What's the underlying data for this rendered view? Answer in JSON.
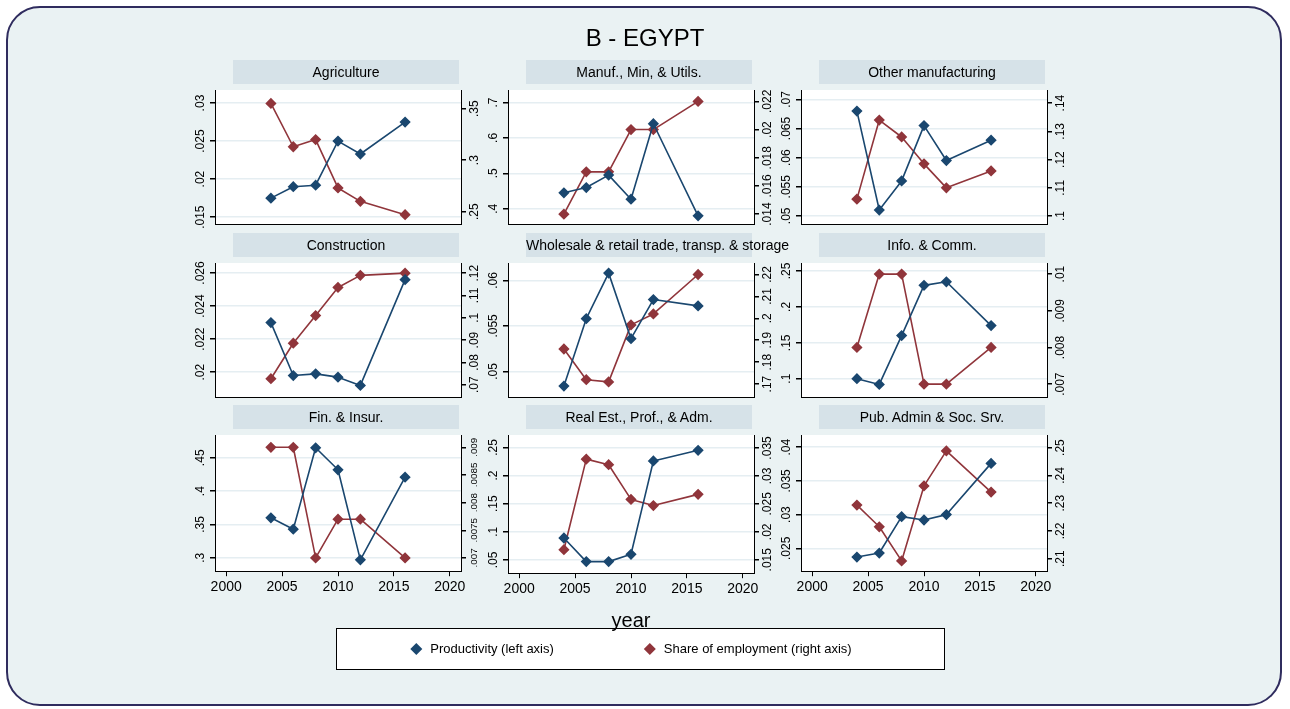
{
  "chart_data": [
    {
      "type": "line",
      "title": "Agriculture",
      "x": [
        2004,
        2006,
        2008,
        2010,
        2012,
        2016
      ],
      "xlim": [
        1999,
        2021
      ],
      "marker": "diamond",
      "grid": "y",
      "tick_labels": "y",
      "series": [
        {
          "color": "#1a476f",
          "values": [
            0.0175,
            0.019,
            0.0192,
            0.025,
            0.0233,
            0.0275
          ]
        },
        {
          "color": "#90353b",
          "axis": "y2",
          "values": [
            0.355,
            0.313,
            0.32,
            0.273,
            0.26,
            0.247
          ]
        }
      ],
      "ylim": [
        0.0141,
        0.0317
      ],
      "yticks": [
        {
          "value": 0.015,
          "label": ".015"
        },
        {
          "value": 0.02,
          "label": ".02"
        },
        {
          "value": 0.025,
          "label": ".025"
        },
        {
          "value": 0.03,
          "label": ".03"
        }
      ],
      "y2lim": [
        0.238,
        0.368
      ],
      "y2ticks": [
        {
          "value": 0.25,
          "label": ".25"
        },
        {
          "value": 0.3,
          "label": ".3"
        },
        {
          "value": 0.35,
          "label": ".35"
        }
      ]
    },
    {
      "type": "line",
      "title": "Manuf., Min, & Utils.",
      "subtitle": "B - EGYPT",
      "x": [
        2004,
        2006,
        2008,
        2010,
        2012,
        2016
      ],
      "xlim": [
        1999,
        2021
      ],
      "marker": "diamond",
      "grid": "y",
      "tick_labels": "y",
      "series": [
        {
          "color": "#1a476f",
          "values": [
            0.445,
            0.46,
            0.495,
            0.427,
            0.64,
            0.38
          ]
        },
        {
          "color": "#90353b",
          "axis": "y2",
          "values": [
            0.014,
            0.017,
            0.017,
            0.02,
            0.02,
            0.022
          ]
        }
      ],
      "ylim": [
        0.357,
        0.735
      ],
      "yticks": [
        {
          "value": 0.4,
          "label": ".4"
        },
        {
          "value": 0.5,
          "label": ".5"
        },
        {
          "value": 0.6,
          "label": ".6"
        },
        {
          "value": 0.7,
          "label": ".7"
        }
      ],
      "y2lim": [
        0.0133,
        0.0228
      ],
      "y2ticks": [
        {
          "value": 0.014,
          "label": ".014"
        },
        {
          "value": 0.016,
          "label": ".016"
        },
        {
          "value": 0.018,
          "label": ".018"
        },
        {
          "value": 0.02,
          "label": ".02"
        },
        {
          "value": 0.022,
          "label": ".022"
        }
      ]
    },
    {
      "type": "line",
      "title": "Other manufacturing",
      "x": [
        2004,
        2006,
        2008,
        2010,
        2012,
        2016
      ],
      "xlim": [
        1999,
        2021
      ],
      "marker": "diamond",
      "grid": "y",
      "tick_labels": "y",
      "series": [
        {
          "color": "#1a476f",
          "values": [
            0.068,
            0.051,
            0.056,
            0.0655,
            0.0595,
            0.063
          ]
        },
        {
          "color": "#90353b",
          "axis": "y2",
          "values": [
            0.106,
            0.134,
            0.128,
            0.1185,
            0.11,
            0.116
          ]
        }
      ],
      "ylim": [
        0.0486,
        0.0716
      ],
      "yticks": [
        {
          "value": 0.05,
          "label": ".05"
        },
        {
          "value": 0.055,
          "label": ".055"
        },
        {
          "value": 0.06,
          "label": ".06"
        },
        {
          "value": 0.065,
          "label": ".065"
        },
        {
          "value": 0.07,
          "label": ".07"
        }
      ],
      "y2lim": [
        0.0972,
        0.1446
      ],
      "y2ticks": [
        {
          "value": 0.1,
          "label": ".1"
        },
        {
          "value": 0.11,
          "label": ".11"
        },
        {
          "value": 0.12,
          "label": ".12"
        },
        {
          "value": 0.13,
          "label": ".13"
        },
        {
          "value": 0.14,
          "label": ".14"
        }
      ]
    },
    {
      "type": "line",
      "title": "Construction",
      "x": [
        2004,
        2006,
        2008,
        2010,
        2012,
        2016
      ],
      "xlim": [
        1999,
        2021
      ],
      "marker": "diamond",
      "grid": "y",
      "tick_labels": "y",
      "series": [
        {
          "color": "#1a476f",
          "values": [
            0.023,
            0.0198,
            0.0199,
            0.0197,
            0.0192,
            0.0256
          ]
        },
        {
          "color": "#90353b",
          "axis": "y2",
          "values": [
            0.0727,
            0.0886,
            0.101,
            0.1136,
            0.119,
            0.12
          ]
        }
      ],
      "ylim": [
        0.0185,
        0.0266
      ],
      "yticks": [
        {
          "value": 0.02,
          "label": ".02"
        },
        {
          "value": 0.022,
          "label": ".022"
        },
        {
          "value": 0.024,
          "label": ".024"
        },
        {
          "value": 0.026,
          "label": ".026"
        }
      ],
      "y2lim": [
        0.0645,
        0.1245
      ],
      "y2ticks": [
        {
          "value": 0.07,
          "label": ".07"
        },
        {
          "value": 0.08,
          "label": ".08"
        },
        {
          "value": 0.09,
          "label": ".09"
        },
        {
          "value": 0.1,
          "label": ".1"
        },
        {
          "value": 0.11,
          "label": ".11"
        },
        {
          "value": 0.12,
          "label": ".12"
        }
      ]
    },
    {
      "type": "line",
      "title": "Wholesale & retail trade, transp. & storage",
      "x": [
        2004,
        2006,
        2008,
        2010,
        2012,
        2016
      ],
      "xlim": [
        1999,
        2021
      ],
      "marker": "diamond",
      "grid": "y",
      "tick_labels": "y",
      "series": [
        {
          "color": "#1a476f",
          "values": [
            0.0484,
            0.0558,
            0.0608,
            0.0536,
            0.0579,
            0.0572
          ]
        },
        {
          "color": "#90353b",
          "axis": "y2",
          "values": [
            0.186,
            0.172,
            0.171,
            0.197,
            0.202,
            0.22
          ]
        }
      ],
      "ylim": [
        0.0472,
        0.0619
      ],
      "yticks": [
        {
          "value": 0.05,
          "label": ".05"
        },
        {
          "value": 0.055,
          "label": ".055"
        },
        {
          "value": 0.06,
          "label": ".06"
        }
      ],
      "y2lim": [
        0.1641,
        0.2252
      ],
      "y2ticks": [
        {
          "value": 0.17,
          "label": ".17"
        },
        {
          "value": 0.18,
          "label": ".18"
        },
        {
          "value": 0.19,
          "label": ".19"
        },
        {
          "value": 0.2,
          "label": ".2"
        },
        {
          "value": 0.21,
          "label": ".21"
        },
        {
          "value": 0.22,
          "label": ".22"
        }
      ]
    },
    {
      "type": "line",
      "title": "Info. & Comm.",
      "x": [
        2004,
        2006,
        2008,
        2010,
        2012,
        2016
      ],
      "xlim": [
        1999,
        2021
      ],
      "marker": "diamond",
      "grid": "y",
      "tick_labels": "y",
      "series": [
        {
          "color": "#1a476f",
          "values": [
            0.1,
            0.092,
            0.16,
            0.23,
            0.235,
            0.174
          ]
        },
        {
          "color": "#90353b",
          "axis": "y2",
          "values": [
            0.008,
            0.01,
            0.01,
            0.007,
            0.007,
            0.008
          ]
        }
      ],
      "ylim": [
        0.0745,
        0.261
      ],
      "yticks": [
        {
          "value": 0.1,
          "label": ".1"
        },
        {
          "value": 0.15,
          "label": ".15"
        },
        {
          "value": 0.2,
          "label": ".2"
        },
        {
          "value": 0.25,
          "label": ".25"
        }
      ],
      "y2lim": [
        0.00665,
        0.0103
      ],
      "y2ticks": [
        {
          "value": 0.007,
          "label": ".007"
        },
        {
          "value": 0.008,
          "label": ".008"
        },
        {
          "value": 0.009,
          "label": ".009"
        },
        {
          "value": 0.01,
          "label": ".01"
        }
      ]
    },
    {
      "type": "line",
      "title": "Fin. & Insur.",
      "x": [
        2004,
        2006,
        2008,
        2010,
        2012,
        2016
      ],
      "xlim": [
        1999,
        2021
      ],
      "xticks": [
        2000,
        2005,
        2010,
        2015,
        2020
      ],
      "marker": "diamond",
      "grid": "y",
      "series": [
        {
          "color": "#1a476f",
          "values": [
            0.36,
            0.343,
            0.465,
            0.432,
            0.297,
            0.421
          ]
        },
        {
          "color": "#90353b",
          "axis": "y2",
          "values": [
            0.009,
            0.009,
            0.007,
            0.0077,
            0.0077,
            0.007
          ]
        }
      ],
      "ylim": [
        0.28,
        0.484
      ],
      "yticks": [
        {
          "value": 0.3,
          "label": ".3"
        },
        {
          "value": 0.35,
          "label": ".35"
        },
        {
          "value": 0.4,
          "label": ".4"
        },
        {
          "value": 0.45,
          "label": ".45"
        }
      ],
      "y2lim": [
        0.00676,
        0.00922
      ],
      "y2ticks": [
        {
          "value": 0.007,
          "label": ".007"
        },
        {
          "value": 0.0075,
          "label": ".0075"
        },
        {
          "value": 0.008,
          "label": ".008"
        },
        {
          "value": 0.0085,
          "label": ".0085"
        },
        {
          "value": 0.009,
          "label": ".009"
        }
      ]
    },
    {
      "type": "line",
      "title": "Real Est., Prof., & Adm.",
      "xlabel": "year",
      "legend": "bottom",
      "x": [
        2004,
        2006,
        2008,
        2010,
        2012,
        2016
      ],
      "xlim": [
        1999,
        2021
      ],
      "xticks": [
        2000,
        2005,
        2010,
        2015,
        2020
      ],
      "marker": "diamond",
      "grid": "y",
      "series": [
        {
          "name": "Productivity (left axis)",
          "color": "#1a476f",
          "values": [
            0.089,
            0.047,
            0.047,
            0.06,
            0.226,
            0.245
          ]
        },
        {
          "name": "Share of employment (right axis)",
          "color": "#90353b",
          "axis": "y2",
          "values": [
            0.0168,
            0.033,
            0.032,
            0.0258,
            0.0247,
            0.0267
          ]
        }
      ],
      "ylim": [
        0.0264,
        0.272
      ],
      "yticks": [
        {
          "value": 0.05,
          "label": ".05"
        },
        {
          "value": 0.1,
          "label": ".1"
        },
        {
          "value": 0.15,
          "label": ".15"
        },
        {
          "value": 0.2,
          "label": ".2"
        },
        {
          "value": 0.25,
          "label": ".25"
        }
      ],
      "y2lim": [
        0.0126,
        0.0373
      ],
      "y2ticks": [
        {
          "value": 0.015,
          "label": ".015"
        },
        {
          "value": 0.02,
          "label": ".02"
        },
        {
          "value": 0.025,
          "label": ".025"
        },
        {
          "value": 0.03,
          "label": ".03"
        },
        {
          "value": 0.035,
          "label": ".035"
        }
      ]
    },
    {
      "type": "line",
      "title": "Pub. Admin & Soc. Srv.",
      "x": [
        2004,
        2006,
        2008,
        2010,
        2012,
        2016
      ],
      "xlim": [
        1999,
        2021
      ],
      "xticks": [
        2000,
        2005,
        2010,
        2015,
        2020
      ],
      "marker": "diamond",
      "grid": "y",
      "series": [
        {
          "color": "#1a476f",
          "values": [
            0.0237,
            0.0243,
            0.0297,
            0.0292,
            0.03,
            0.0376
          ]
        },
        {
          "color": "#90353b",
          "axis": "y2",
          "values": [
            0.2293,
            0.2215,
            0.2092,
            0.2362,
            0.2488,
            0.234
          ]
        }
      ],
      "ylim": [
        0.0216,
        0.0418
      ],
      "yticks": [
        {
          "value": 0.025,
          "label": ".025"
        },
        {
          "value": 0.03,
          "label": ".03"
        },
        {
          "value": 0.035,
          "label": ".035"
        },
        {
          "value": 0.04,
          "label": ".04"
        }
      ],
      "y2lim": [
        0.2055,
        0.2545
      ],
      "y2ticks": [
        {
          "value": 0.21,
          "label": ".21"
        },
        {
          "value": 0.22,
          "label": ".22"
        },
        {
          "value": 0.23,
          "label": ".23"
        },
        {
          "value": 0.24,
          "label": ".24"
        },
        {
          "value": 0.25,
          "label": ".25"
        }
      ]
    }
  ]
}
